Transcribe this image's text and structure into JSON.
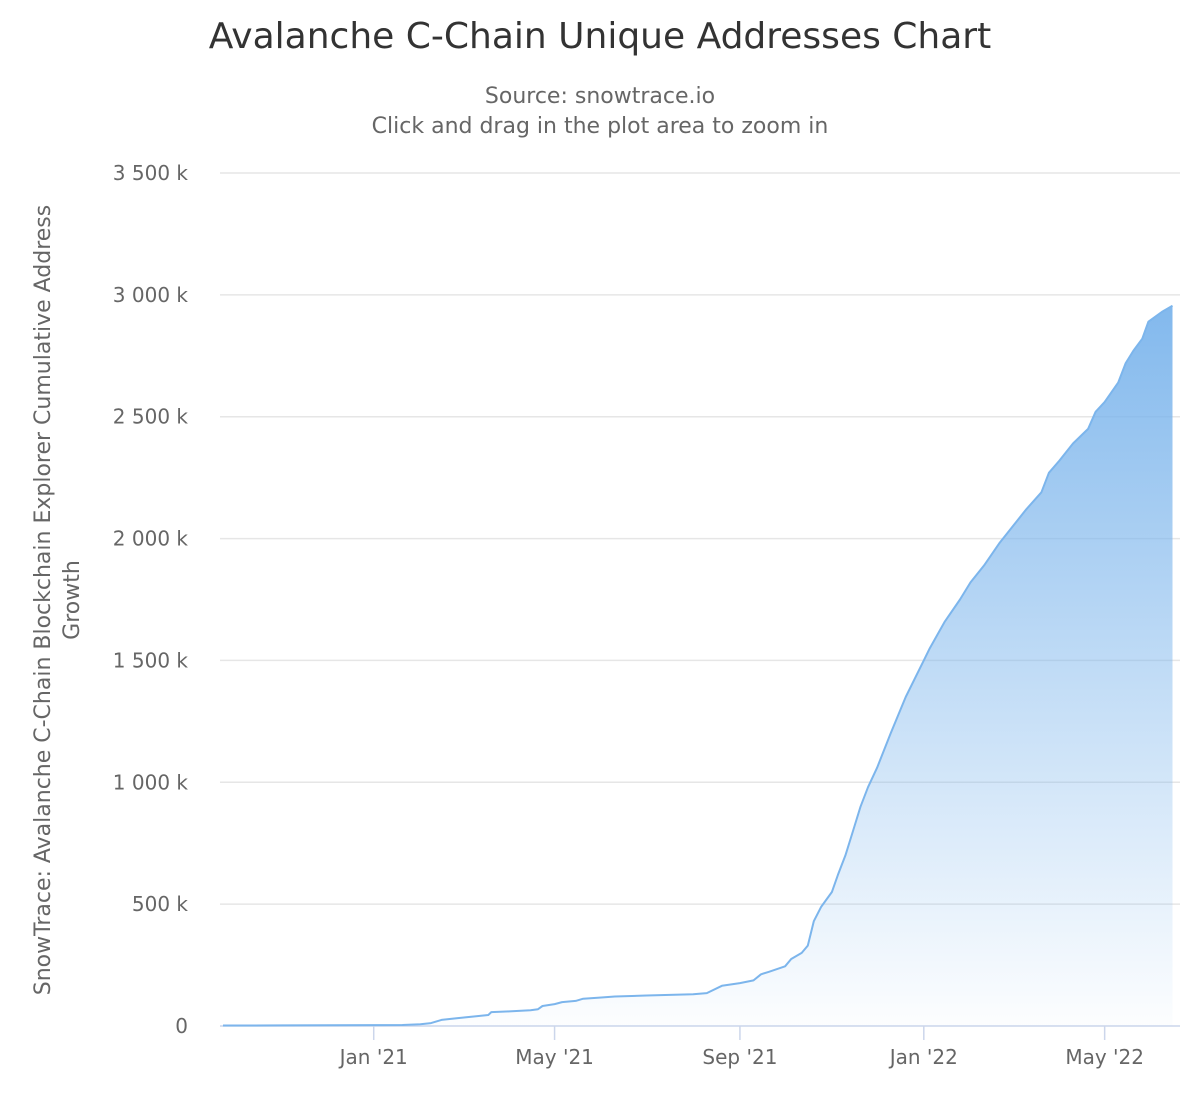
{
  "chart_data": {
    "type": "area",
    "title": "Avalanche C-Chain Unique Addresses Chart",
    "subtitle": "Source: snowtrace.io",
    "subtitle2": "Click and drag in the plot area to zoom in",
    "ylabel_line1": "SnowTrace: Avalanche C-Chain Blockchain Explorer Cumulative Address",
    "ylabel_line2": "Growth",
    "xlabel": "",
    "ylim": [
      0,
      3500000
    ],
    "xlim": [
      "2020-09-21",
      "2022-06-20"
    ],
    "grid": true,
    "legend": "none",
    "y_ticks": [
      {
        "value": 0,
        "label": "0"
      },
      {
        "value": 500000,
        "label": "500 k"
      },
      {
        "value": 1000000,
        "label": "1 000 k"
      },
      {
        "value": 1500000,
        "label": "1 500 k"
      },
      {
        "value": 2000000,
        "label": "2 000 k"
      },
      {
        "value": 2500000,
        "label": "2 500 k"
      },
      {
        "value": 3000000,
        "label": "3 000 k"
      },
      {
        "value": 3500000,
        "label": "3 500 k"
      }
    ],
    "x_ticks": [
      {
        "date": "2021-01-01",
        "label": "Jan '21"
      },
      {
        "date": "2021-05-01",
        "label": "May '21"
      },
      {
        "date": "2021-09-01",
        "label": "Sep '21"
      },
      {
        "date": "2022-01-01",
        "label": "Jan '22"
      },
      {
        "date": "2022-05-01",
        "label": "May '22"
      }
    ],
    "series": [
      {
        "color": "#7cb5ec",
        "points": [
          [
            "2020-09-23",
            2000
          ],
          [
            "2020-11-01",
            2500
          ],
          [
            "2020-12-01",
            3000
          ],
          [
            "2021-01-01",
            3500
          ],
          [
            "2021-01-20",
            4000
          ],
          [
            "2021-02-01",
            7000
          ],
          [
            "2021-02-08",
            12000
          ],
          [
            "2021-02-15",
            25000
          ],
          [
            "2021-02-25",
            32000
          ],
          [
            "2021-03-10",
            40000
          ],
          [
            "2021-03-18",
            45000
          ],
          [
            "2021-03-20",
            57000
          ],
          [
            "2021-04-01",
            60000
          ],
          [
            "2021-04-15",
            65000
          ],
          [
            "2021-04-20",
            69000
          ],
          [
            "2021-04-23",
            82000
          ],
          [
            "2021-05-01",
            90000
          ],
          [
            "2021-05-06",
            98000
          ],
          [
            "2021-05-15",
            103000
          ],
          [
            "2021-05-20",
            112000
          ],
          [
            "2021-06-01",
            117000
          ],
          [
            "2021-06-10",
            121000
          ],
          [
            "2021-07-01",
            125000
          ],
          [
            "2021-08-01",
            130000
          ],
          [
            "2021-08-10",
            135000
          ],
          [
            "2021-08-20",
            165000
          ],
          [
            "2021-09-01",
            176000
          ],
          [
            "2021-09-10",
            187000
          ],
          [
            "2021-09-15",
            212000
          ],
          [
            "2021-09-20",
            222000
          ],
          [
            "2021-10-01",
            245000
          ],
          [
            "2021-10-05",
            275000
          ],
          [
            "2021-10-12",
            300000
          ],
          [
            "2021-10-16",
            330000
          ],
          [
            "2021-10-20",
            430000
          ],
          [
            "2021-10-25",
            490000
          ],
          [
            "2021-11-01",
            550000
          ],
          [
            "2021-11-05",
            620000
          ],
          [
            "2021-11-10",
            700000
          ],
          [
            "2021-11-15",
            800000
          ],
          [
            "2021-11-20",
            900000
          ],
          [
            "2021-11-25",
            980000
          ],
          [
            "2021-12-01",
            1060000
          ],
          [
            "2021-12-10",
            1200000
          ],
          [
            "2021-12-20",
            1350000
          ],
          [
            "2022-01-01",
            1500000
          ],
          [
            "2022-01-05",
            1550000
          ],
          [
            "2022-01-15",
            1660000
          ],
          [
            "2022-01-25",
            1750000
          ],
          [
            "2022-02-01",
            1820000
          ],
          [
            "2022-02-10",
            1890000
          ],
          [
            "2022-02-20",
            1980000
          ],
          [
            "2022-03-01",
            2050000
          ],
          [
            "2022-03-10",
            2120000
          ],
          [
            "2022-03-20",
            2190000
          ],
          [
            "2022-03-25",
            2270000
          ],
          [
            "2022-04-01",
            2320000
          ],
          [
            "2022-04-10",
            2390000
          ],
          [
            "2022-04-20",
            2450000
          ],
          [
            "2022-04-25",
            2520000
          ],
          [
            "2022-05-01",
            2560000
          ],
          [
            "2022-05-10",
            2640000
          ],
          [
            "2022-05-15",
            2720000
          ],
          [
            "2022-05-20",
            2770000
          ],
          [
            "2022-05-26",
            2820000
          ],
          [
            "2022-05-30",
            2890000
          ],
          [
            "2022-06-08",
            2930000
          ],
          [
            "2022-06-15",
            2955000
          ]
        ]
      }
    ]
  }
}
